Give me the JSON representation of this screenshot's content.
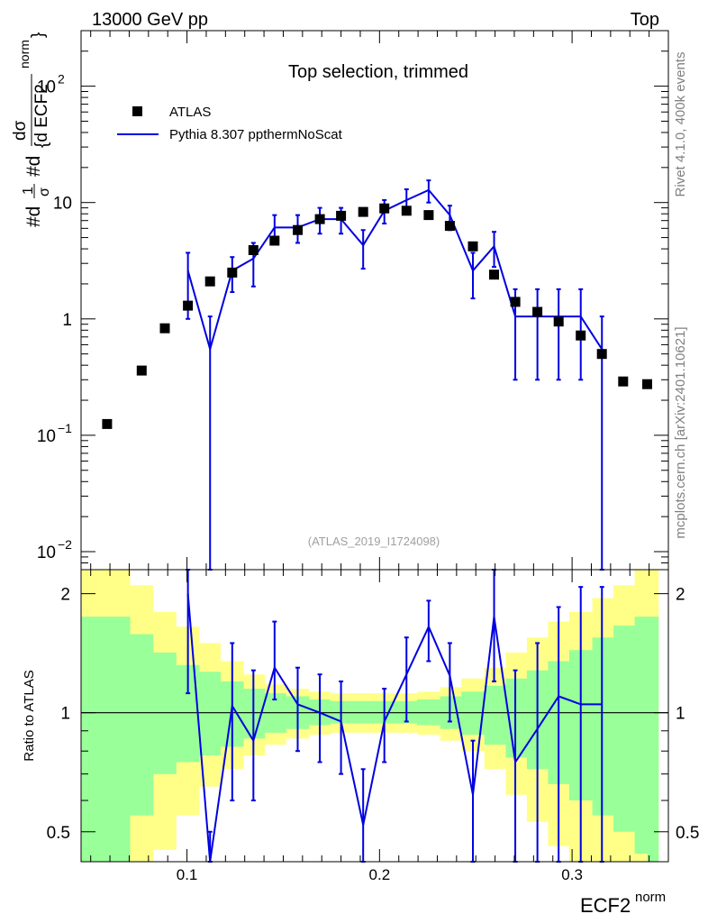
{
  "header": {
    "left": "13000 GeV pp",
    "right": "Top"
  },
  "side_text": {
    "rivet": "Rivet 4.1.0,  400k events",
    "mcplots": "mcplots.cern.ch [arXiv:2401.10621]"
  },
  "colors": {
    "data": "#000000",
    "mc": "#0000e0",
    "band_inner": "#99ff99",
    "band_outer": "#ffff88"
  },
  "chart_data": [
    {
      "type": "scatter",
      "title": "Top selection, trimmed",
      "analysis": "(ATLAS_2019_I1724098)",
      "ylabel_parts": {
        "a": "#d",
        "b": "1",
        "c": "σ",
        "d": "#d",
        "e": "dσ",
        "f": "{d ECF2",
        "g": "norm",
        "h": "}"
      },
      "xlim": [
        0.045,
        0.35
      ],
      "ylim": [
        0.007,
        300
      ],
      "yscale": "log",
      "y_ticks": [
        {
          "v": 0.01,
          "base": "10",
          "exp": "−2"
        },
        {
          "v": 0.1,
          "base": "10",
          "exp": "−1"
        },
        {
          "v": 1,
          "base": "1",
          "exp": ""
        },
        {
          "v": 10,
          "base": "10",
          "exp": ""
        },
        {
          "v": 100,
          "base": "10",
          "exp": "2"
        }
      ],
      "legend": [
        "ATLAS",
        "Pythia 8.307 ppthermNoScat"
      ],
      "series": [
        {
          "name": "ATLAS",
          "x": [
            0.0585,
            0.0765,
            0.0885,
            0.1005,
            0.112,
            0.1235,
            0.1345,
            0.1455,
            0.1575,
            0.169,
            0.18,
            0.1915,
            0.2025,
            0.214,
            0.2255,
            0.2365,
            0.2485,
            0.2595,
            0.2705,
            0.282,
            0.293,
            0.3045,
            0.3155,
            0.3265,
            0.339
          ],
          "y": [
            0.125,
            0.36,
            0.83,
            1.3,
            2.1,
            2.5,
            3.9,
            4.7,
            5.8,
            7.2,
            7.7,
            8.3,
            8.9,
            8.5,
            7.8,
            6.3,
            4.2,
            2.4,
            1.4,
            1.15,
            0.95,
            0.72,
            0.5,
            0.29,
            0.275
          ]
        },
        {
          "name": "Pythia 8.307 ppthermNoScat",
          "x": [
            0.1005,
            0.112,
            0.1235,
            0.1345,
            0.1455,
            0.1575,
            0.169,
            0.18,
            0.1915,
            0.2025,
            0.214,
            0.2255,
            0.2365,
            0.2485,
            0.2595,
            0.2705,
            0.282,
            0.293,
            0.3045,
            0.3155
          ],
          "y": [
            2.6,
            0.55,
            2.6,
            3.3,
            6.1,
            6.1,
            7.2,
            7.2,
            4.3,
            8.5,
            10.5,
            12.8,
            7.8,
            2.6,
            4.2,
            1.05,
            1.05,
            1.05,
            1.05,
            0.55
          ],
          "y_lo": [
            1.0,
            0.001,
            1.7,
            1.9,
            4.5,
            4.5,
            5.4,
            5.4,
            2.7,
            6.6,
            8.0,
            10.0,
            5.8,
            1.5,
            2.8,
            0.3,
            0.3,
            0.3,
            0.3,
            0.001
          ],
          "y_hi": [
            3.7,
            1.05,
            3.4,
            4.5,
            7.8,
            7.8,
            9.0,
            9.0,
            5.8,
            10.5,
            13.0,
            15.5,
            9.4,
            3.7,
            5.6,
            1.8,
            1.8,
            1.8,
            1.8,
            1.05
          ]
        }
      ]
    },
    {
      "type": "line",
      "ylabel": "Ratio to ATLAS",
      "xlabel_base": "ECF2",
      "xlabel_sup": "norm",
      "xlim": [
        0.045,
        0.35
      ],
      "ylim": [
        0.42,
        2.3
      ],
      "yscale": "log",
      "x_ticks": [
        0.1,
        0.2,
        0.3
      ],
      "y_ticks": [
        0.5,
        1,
        2
      ],
      "reference_line": 1,
      "bins": [
        0.045,
        0.0525,
        0.0705,
        0.0825,
        0.0945,
        0.1065,
        0.1175,
        0.1295,
        0.1405,
        0.1515,
        0.1635,
        0.1745,
        0.1855,
        0.1965,
        0.2085,
        0.2195,
        0.2315,
        0.2425,
        0.2545,
        0.2655,
        0.2765,
        0.2875,
        0.2985,
        0.3105,
        0.3215,
        0.3325,
        0.339,
        0.345
      ],
      "band_inner_hi": [
        1.75,
        1.75,
        1.58,
        1.42,
        1.32,
        1.27,
        1.2,
        1.15,
        1.12,
        1.1,
        1.08,
        1.07,
        1.07,
        1.07,
        1.07,
        1.08,
        1.1,
        1.13,
        1.17,
        1.22,
        1.28,
        1.35,
        1.44,
        1.55,
        1.66,
        1.75,
        1.75
      ],
      "band_inner_lo": [
        0.41,
        0.41,
        0.55,
        0.7,
        0.75,
        0.78,
        0.82,
        0.86,
        0.89,
        0.91,
        0.93,
        0.94,
        0.94,
        0.94,
        0.94,
        0.93,
        0.91,
        0.88,
        0.83,
        0.77,
        0.72,
        0.66,
        0.6,
        0.55,
        0.5,
        0.44,
        0.41
      ],
      "band_outer_hi": [
        2.4,
        2.4,
        2.1,
        1.8,
        1.65,
        1.5,
        1.35,
        1.25,
        1.18,
        1.15,
        1.13,
        1.12,
        1.12,
        1.12,
        1.12,
        1.13,
        1.16,
        1.22,
        1.3,
        1.42,
        1.55,
        1.7,
        1.8,
        1.95,
        2.1,
        2.3,
        2.4
      ],
      "band_outer_lo": [
        0.41,
        0.41,
        0.41,
        0.45,
        0.55,
        0.65,
        0.72,
        0.78,
        0.83,
        0.86,
        0.88,
        0.89,
        0.89,
        0.89,
        0.89,
        0.88,
        0.85,
        0.8,
        0.72,
        0.62,
        0.53,
        0.46,
        0.41,
        0.41,
        0.41,
        0.41,
        0.41
      ],
      "series": [
        {
          "name": "Pythia 8.307 ppthermNoScat / ATLAS",
          "x": [
            0.1005,
            0.112,
            0.1235,
            0.1345,
            0.1455,
            0.1575,
            0.169,
            0.18,
            0.1915,
            0.2025,
            0.214,
            0.2255,
            0.2365,
            0.2485,
            0.2595,
            0.2705,
            0.282,
            0.293,
            0.3045,
            0.3155
          ],
          "y": [
            2.0,
            0.26,
            1.04,
            0.85,
            1.3,
            1.05,
            1.0,
            0.95,
            0.52,
            0.95,
            1.25,
            1.65,
            1.24,
            0.62,
            1.75,
            0.75,
            0.91,
            1.1,
            1.05,
            1.05
          ],
          "y_lo": [
            1.12,
            0.001,
            0.6,
            0.6,
            1.08,
            0.8,
            0.75,
            0.7,
            0.33,
            0.75,
            0.95,
            1.35,
            0.95,
            0.38,
            1.2,
            0.22,
            0.26,
            0.33,
            0.41,
            0.001
          ],
          "y_hi": [
            2.55,
            0.5,
            1.5,
            1.28,
            1.7,
            1.3,
            1.25,
            1.2,
            0.72,
            1.15,
            1.55,
            1.92,
            1.5,
            0.85,
            2.35,
            1.28,
            1.5,
            1.85,
            2.08,
            2.08
          ]
        }
      ]
    }
  ]
}
